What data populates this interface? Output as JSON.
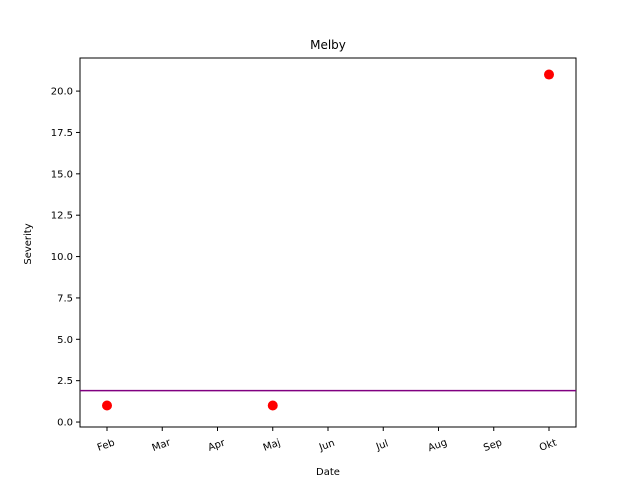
{
  "chart_data": {
    "type": "scatter",
    "title": "Melby",
    "xlabel": "Date",
    "ylabel": "Severity",
    "x_tick_labels": [
      "Feb",
      "Mar",
      "Apr",
      "Maj",
      "Jun",
      "Jul",
      "Aug",
      "Sep",
      "Okt"
    ],
    "y_tick_labels": [
      "0.0",
      "2.5",
      "5.0",
      "7.5",
      "10.0",
      "12.5",
      "15.0",
      "17.5",
      "20.0"
    ],
    "ylim": [
      -0.3,
      22.0
    ],
    "grid": false,
    "legend": "none",
    "series": [
      {
        "points": [
          {
            "x": "Feb",
            "y": 1
          },
          {
            "x": "Maj",
            "y": 1
          },
          {
            "x": "Okt",
            "y": 21
          }
        ],
        "color": "#ff0000"
      }
    ],
    "reference_line": {
      "y": 1.9,
      "color": "#800080"
    }
  }
}
